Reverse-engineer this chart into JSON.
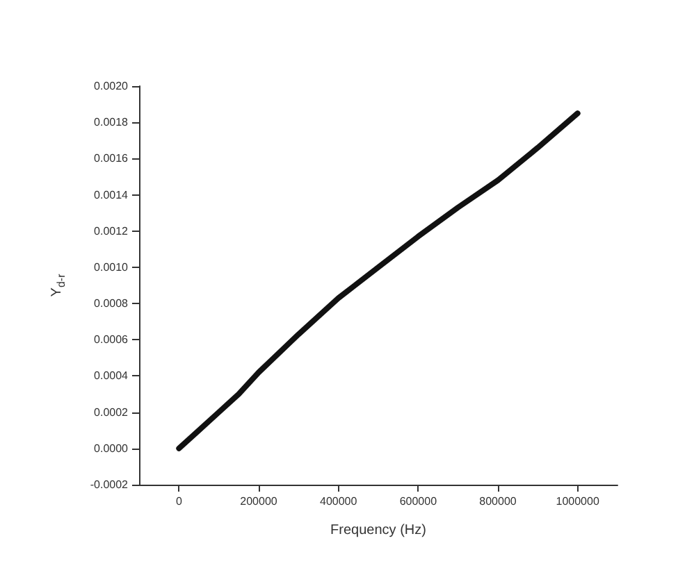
{
  "chart_data": {
    "type": "line",
    "xlabel": "Frequency (Hz)",
    "ylabel": "Y$_{d-r}$",
    "x": [
      0,
      50000,
      100000,
      150000,
      200000,
      300000,
      400000,
      500000,
      600000,
      700000,
      800000,
      900000,
      1000000
    ],
    "series": [
      {
        "color": "#111111",
        "values": [
          0,
          0.0001,
          0.0002,
          0.0003,
          0.00042,
          0.00063,
          0.00083,
          0.001,
          0.00117,
          0.00133,
          0.00148,
          0.00166,
          0.00185
        ]
      }
    ],
    "xlim": [
      -100000,
      1100000
    ],
    "xticks": [
      {
        "value": 0,
        "label": "0"
      },
      {
        "value": 200000,
        "label": "200000"
      },
      {
        "value": 400000,
        "label": "400000"
      },
      {
        "value": 600000,
        "label": "600000"
      },
      {
        "value": 800000,
        "label": "800000"
      },
      {
        "value": 1000000,
        "label": "1000000"
      }
    ],
    "ylim": [
      -0.0002,
      0.002
    ],
    "yticks": [
      {
        "value": -0.0002,
        "label": "-0.0002"
      },
      {
        "value": 0,
        "label": "0.0000"
      },
      {
        "value": 0.0002,
        "label": "0.0002"
      },
      {
        "value": 0.0004,
        "label": "0.0004"
      },
      {
        "value": 0.0006,
        "label": "0.0006"
      },
      {
        "value": 0.0008,
        "label": "0.0008"
      },
      {
        "value": 0.001,
        "label": "0.0010"
      },
      {
        "value": 0.0012,
        "label": "0.0012"
      },
      {
        "value": 0.0014,
        "label": "0.0014"
      },
      {
        "value": 0.0016,
        "label": "0.0016"
      },
      {
        "value": 0.0018,
        "label": "0.0018"
      },
      {
        "value": 0.002,
        "label": "0.0020"
      }
    ],
    "grid": false,
    "marker": "none",
    "line_style": "solid"
  }
}
